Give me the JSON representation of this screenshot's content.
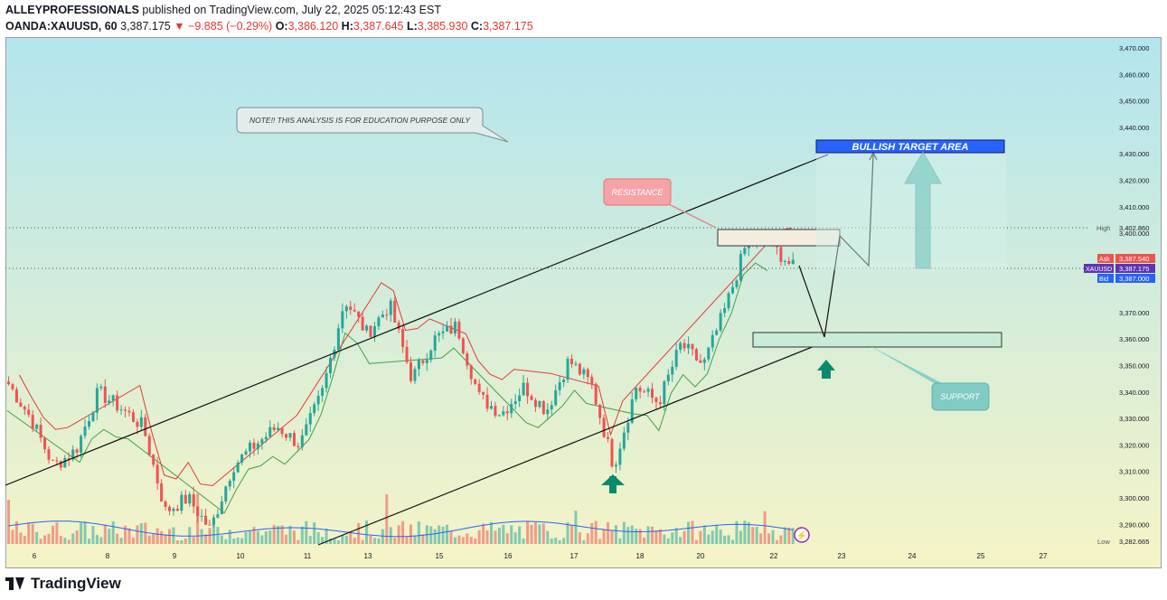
{
  "header": {
    "author": "ALLEYPROFESSIONALS",
    "published_text": "published on TradingView.com, July 22, 2025 05:12:43 EST",
    "symbol": "OANDA:XAUUSD, 60",
    "last": "3,387.175",
    "change": "−9.885 (−0.29%)",
    "o_label": "O:",
    "o_val": "3,386.120",
    "h_label": "H:",
    "h_val": "3,387.645",
    "l_label": "L:",
    "l_val": "3,385.930",
    "c_label": "C:",
    "c_val": "3,387.175",
    "down_icon": "triangle-down-icon"
  },
  "footer": {
    "brand": "TradingView",
    "logo_icon": "tradingview-logo-icon"
  },
  "colors": {
    "up": "#26a69a",
    "down": "#ef5350",
    "accent": "#2962ff",
    "bg_top": "#b2e5ee",
    "bg_bottom": "#f6f4c6"
  },
  "annotations": {
    "note": "NOTE!! THIS ANALYSIS IS FOR EDUCATION PURPOSE ONLY",
    "resistance": "RESISTANCE",
    "support": "SUPPORT",
    "target": "BULLISH TARGET AREA"
  },
  "price_labels": {
    "high_label": "High",
    "high": "3,402.860",
    "low_label": "Low",
    "low": "3,282.665",
    "ask_label": "Ask",
    "ask": "3,387.540",
    "sym_label": "XAUUSD",
    "last": "3,387.175",
    "bid_label": "Bid",
    "bid": "3,387.000"
  },
  "chart_data": {
    "type": "candlestick",
    "title": "OANDA:XAUUSD, 60",
    "x_tick_labels": [
      "6",
      "8",
      "9",
      "10",
      "11",
      "13",
      "15",
      "16",
      "17",
      "18",
      "20",
      "22",
      "23",
      "24",
      "25",
      "27"
    ],
    "y_ticks": [
      "3,290.000",
      "3,300.000",
      "3,310.000",
      "3,320.000",
      "3,330.000",
      "3,340.000",
      "3,350.000",
      "3,360.000",
      "3,370.000",
      "3,380.000",
      "3,390.000",
      "3,400.000",
      "3,410.000",
      "3,420.000",
      "3,430.000",
      "3,440.000",
      "3,450.000",
      "3,460.000",
      "3,470.000"
    ],
    "ylim": [
      3281,
      3473
    ],
    "series": [
      {
        "name": "XAUUSD",
        "type": "candlestick",
        "close_path": [
          {
            "x": "6",
            "y": 3343
          },
          {
            "x": "6",
            "y": 3330
          },
          {
            "x": "6",
            "y": 3312
          },
          {
            "x": "8",
            "y": 3318
          },
          {
            "x": "8",
            "y": 3340
          },
          {
            "x": "8",
            "y": 3334
          },
          {
            "x": "8",
            "y": 3327
          },
          {
            "x": "9",
            "y": 3295
          },
          {
            "x": "9",
            "y": 3300
          },
          {
            "x": "9",
            "y": 3288
          },
          {
            "x": "10",
            "y": 3312
          },
          {
            "x": "10",
            "y": 3320
          },
          {
            "x": "10",
            "y": 3327
          },
          {
            "x": "11",
            "y": 3320
          },
          {
            "x": "11",
            "y": 3340
          },
          {
            "x": "13",
            "y": 3375
          },
          {
            "x": "13",
            "y": 3362
          },
          {
            "x": "13",
            "y": 3373
          },
          {
            "x": "13",
            "y": 3345
          },
          {
            "x": "15",
            "y": 3360
          },
          {
            "x": "15",
            "y": 3365
          },
          {
            "x": "15",
            "y": 3338
          },
          {
            "x": "16",
            "y": 3332
          },
          {
            "x": "16",
            "y": 3342
          },
          {
            "x": "16",
            "y": 3333
          },
          {
            "x": "17",
            "y": 3352
          },
          {
            "x": "17",
            "y": 3343
          },
          {
            "x": "17",
            "y": 3312
          },
          {
            "x": "18",
            "y": 3342
          },
          {
            "x": "18",
            "y": 3336
          },
          {
            "x": "18",
            "y": 3358
          },
          {
            "x": "20",
            "y": 3350
          },
          {
            "x": "20",
            "y": 3372
          },
          {
            "x": "20",
            "y": 3398
          },
          {
            "x": "22",
            "y": 3396
          },
          {
            "x": "22",
            "y": 3387
          }
        ]
      },
      {
        "name": "Volume",
        "type": "bar"
      },
      {
        "name": "Trailing stop",
        "type": "step-line"
      }
    ],
    "annotations": [
      "NOTE!! THIS ANALYSIS IS FOR EDUCATION PURPOSE ONLY",
      "RESISTANCE",
      "SUPPORT",
      "BULLISH TARGET AREA"
    ],
    "resistance_zone": [
      3397,
      3403
    ],
    "support_zone": [
      3357,
      3363
    ],
    "target_zone": [
      3431,
      3436
    ],
    "grid": false,
    "legend": "none"
  }
}
